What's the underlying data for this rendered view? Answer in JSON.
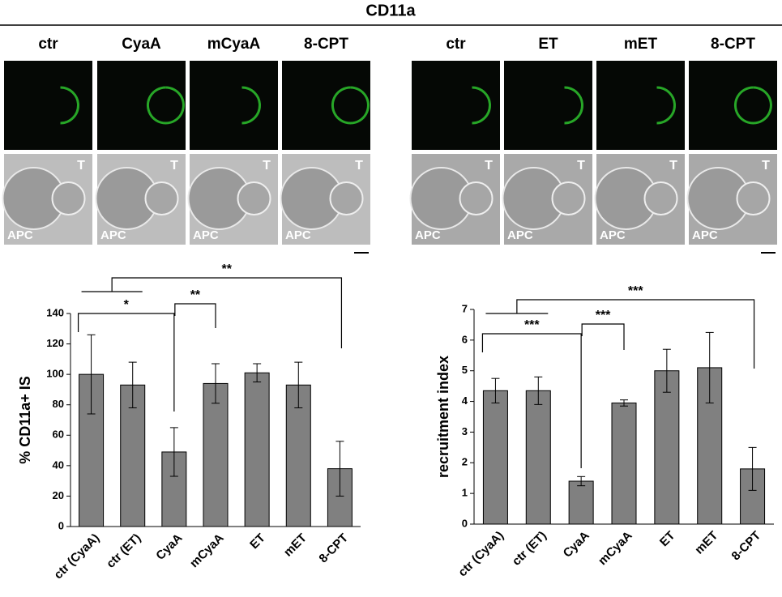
{
  "figure": {
    "title": "CD11a",
    "panels": [
      {
        "columns": [
          "ctr",
          "CyaA",
          "mCyaA",
          "8-CPT"
        ]
      },
      {
        "columns": [
          "ctr",
          "ET",
          "mET",
          "8-CPT"
        ]
      }
    ],
    "image_labels": {
      "t": "T",
      "apc": "APC"
    }
  },
  "chart_data": [
    {
      "type": "bar",
      "ylabel": "% CD11a+ IS",
      "categories": [
        "ctr (CyaA)",
        "ctr (ET)",
        "CyaA",
        "mCyaA",
        "ET",
        "mET",
        "8-CPT"
      ],
      "values": [
        100,
        93,
        49,
        94,
        101,
        93,
        38
      ],
      "errors": [
        26,
        15,
        16,
        13,
        6,
        15,
        18
      ],
      "color": "#808080",
      "ylim": [
        0,
        140
      ],
      "yticks": [
        0,
        20,
        40,
        60,
        80,
        100,
        120,
        140
      ],
      "annotations": [
        "*",
        "**",
        "**"
      ]
    },
    {
      "type": "bar",
      "ylabel": "recruitment index",
      "categories": [
        "ctr (CyaA)",
        "ctr (ET)",
        "CyaA",
        "mCyaA",
        "ET",
        "mET",
        "8-CPT"
      ],
      "values": [
        4.35,
        4.35,
        1.4,
        3.95,
        5.0,
        5.1,
        1.8
      ],
      "errors": [
        0.4,
        0.45,
        0.15,
        0.1,
        0.7,
        1.15,
        0.7
      ],
      "color": "#808080",
      "ylim": [
        0,
        7
      ],
      "yticks": [
        0,
        1,
        2,
        3,
        4,
        5,
        6,
        7
      ],
      "annotations": [
        "***",
        "***",
        "***"
      ]
    }
  ]
}
